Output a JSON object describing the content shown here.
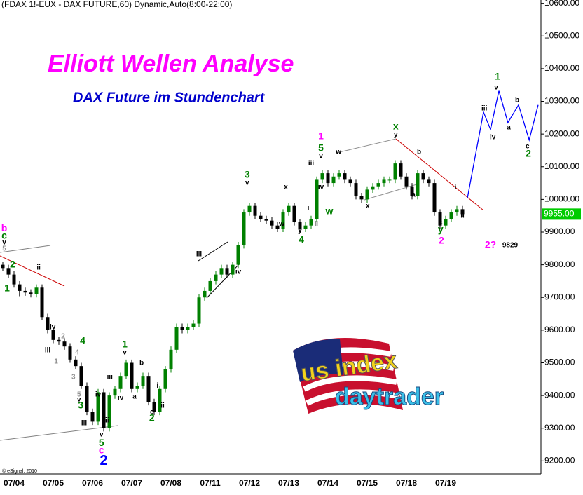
{
  "chart_data": {
    "type": "candlestick",
    "header": "(FDAX 1!-EUX - DAX FUTURE,60) Dynamic,Auto(8:00-22:00)",
    "title": "Elliott Wellen Analyse",
    "subtitle": "DAX Future im Stundenchart",
    "copyright": "© eSignal, 2010",
    "logo": [
      "us index",
      "daytrader"
    ],
    "up_color": "#008000",
    "down_color": "#000000",
    "categories": [
      null,
      null,
      "07/04",
      null,
      null,
      null,
      null,
      null,
      null,
      "07/05",
      null,
      null,
      null,
      null,
      null,
      null,
      "07/06",
      null,
      null,
      null,
      null,
      null,
      null,
      "07/07",
      null,
      null,
      null,
      null,
      null,
      null,
      "07/08",
      null,
      null,
      null,
      null,
      null,
      null,
      "07/11",
      null,
      null,
      null,
      null,
      null,
      null,
      "07/12",
      null,
      null,
      null,
      null,
      null,
      null,
      "07/13",
      null,
      null,
      null,
      null,
      null,
      null,
      "07/14",
      null,
      null,
      null,
      null,
      null,
      null,
      "07/15",
      null,
      null,
      null,
      null,
      null,
      null,
      "07/18",
      null,
      null,
      null,
      null,
      null,
      null,
      "07/19",
      null,
      null,
      null
    ],
    "open": [
      9800,
      9790,
      9770,
      9740,
      9720,
      9715,
      9710,
      9730,
      9640,
      9600,
      9570,
      9565,
      9550,
      9510,
      9490,
      9430,
      9350,
      9320,
      9410,
      9300,
      9400,
      9420,
      9460,
      9500,
      9420,
      9430,
      9460,
      9380,
      9350,
      9420,
      9480,
      9540,
      9610,
      9600,
      9610,
      9620,
      9700,
      9720,
      9750,
      9770,
      9790,
      9770,
      9800,
      9860,
      9960,
      9980,
      9950,
      9940,
      9935,
      9920,
      9910,
      9960,
      9980,
      9930,
      9910,
      9920,
      9940,
      10060,
      10080,
      10050,
      10070,
      10080,
      10060,
      10050,
      10010,
      10000,
      10030,
      10040,
      10050,
      10060,
      10060,
      10110,
      10070,
      10040,
      10010,
      10080,
      10060,
      10050,
      9960,
      9920,
      9940,
      9960,
      9970
    ],
    "high": [
      9810,
      9800,
      9780,
      9750,
      9730,
      9725,
      9740,
      9740,
      9650,
      9610,
      9580,
      9575,
      9560,
      9520,
      9500,
      9440,
      9360,
      9420,
      9420,
      9410,
      9430,
      9470,
      9510,
      9510,
      9440,
      9470,
      9470,
      9390,
      9430,
      9490,
      9550,
      9620,
      9620,
      9620,
      9630,
      9710,
      9730,
      9760,
      9780,
      9800,
      9800,
      9810,
      9870,
      9970,
      9990,
      9990,
      9960,
      9950,
      9945,
      9930,
      9970,
      9990,
      9990,
      9940,
      9930,
      9950,
      10070,
      10090,
      10090,
      10080,
      10090,
      10090,
      10070,
      10060,
      10020,
      10040,
      10050,
      10060,
      10070,
      10070,
      10120,
      10120,
      10080,
      10050,
      10090,
      10090,
      10070,
      10060,
      9970,
      9950,
      9970,
      9980,
      9980
    ],
    "low": [
      9780,
      9760,
      9730,
      9710,
      9705,
      9700,
      9700,
      9630,
      9590,
      9560,
      9555,
      9540,
      9500,
      9480,
      9420,
      9340,
      9310,
      9310,
      9290,
      9290,
      9390,
      9410,
      9450,
      9410,
      9410,
      9420,
      9370,
      9340,
      9340,
      9410,
      9470,
      9530,
      9590,
      9590,
      9600,
      9610,
      9690,
      9710,
      9740,
      9760,
      9760,
      9760,
      9790,
      9850,
      9950,
      9940,
      9930,
      9925,
      9910,
      9900,
      9900,
      9950,
      9920,
      9900,
      9900,
      9910,
      9930,
      10050,
      10040,
      10040,
      10060,
      10050,
      10040,
      10000,
      9990,
      9990,
      10020,
      10030,
      10040,
      10050,
      10050,
      10060,
      10030,
      10000,
      10000,
      10050,
      10040,
      9950,
      9910,
      9910,
      9930,
      9950,
      9945
    ],
    "close": [
      9790,
      9770,
      9740,
      9720,
      9715,
      9710,
      9730,
      9640,
      9600,
      9570,
      9565,
      9550,
      9510,
      9490,
      9430,
      9350,
      9320,
      9410,
      9300,
      9400,
      9420,
      9460,
      9500,
      9420,
      9430,
      9460,
      9380,
      9350,
      9420,
      9480,
      9540,
      9610,
      9600,
      9610,
      9620,
      9700,
      9720,
      9750,
      9770,
      9790,
      9770,
      9800,
      9860,
      9960,
      9980,
      9950,
      9940,
      9935,
      9920,
      9910,
      9960,
      9980,
      9930,
      9910,
      9920,
      9940,
      10060,
      10080,
      10050,
      10070,
      10080,
      10060,
      10050,
      10010,
      10000,
      10030,
      10040,
      10050,
      10060,
      10060,
      10110,
      10070,
      10040,
      10010,
      10080,
      10060,
      10050,
      9960,
      9920,
      9940,
      9960,
      9970,
      9955
    ],
    "projection": {
      "color": "#0000ff",
      "x": [
        82.9,
        85.75,
        87,
        88.5,
        90.1,
        92,
        93.9,
        95.5
      ],
      "values": [
        10006,
        10267,
        10214,
        10332,
        10235,
        10289,
        10182,
        10289
      ]
    },
    "last_price": {
      "value": 9955,
      "label": "9955.00"
    },
    "xlim": [
      -0.5,
      96
    ],
    "ylim": [
      9160,
      10610
    ],
    "yticks": [
      {
        "value": 9200,
        "label": "9200.00"
      },
      {
        "value": 9300,
        "label": "9300.00"
      },
      {
        "value": 9400,
        "label": "9400.00"
      },
      {
        "value": 9500,
        "label": "9500.00"
      },
      {
        "value": 9600,
        "label": "9600.00"
      },
      {
        "value": 9700,
        "label": "9700.00"
      },
      {
        "value": 9800,
        "label": "9800.00"
      },
      {
        "value": 9900,
        "label": "9900.00"
      },
      {
        "value": 10000,
        "label": "10000.00"
      },
      {
        "value": 10100,
        "label": "10100.00"
      },
      {
        "value": 10200,
        "label": "10200.00"
      },
      {
        "value": 10300,
        "label": "10300.00"
      },
      {
        "value": 10400,
        "label": "10400.00"
      },
      {
        "value": 10500,
        "label": "10500.00"
      },
      {
        "value": 10600,
        "label": "10600.00"
      }
    ],
    "annotations": [
      {
        "text": "b",
        "color": "#ff00ff",
        "x": 0.25,
        "y": 9910
      },
      {
        "text": "c",
        "color": "#008000",
        "x": 0.25,
        "y": 9888
      },
      {
        "text": "v",
        "color": "#000000",
        "x": 0.25,
        "y": 9868
      },
      {
        "text": "5",
        "color": "#909090",
        "x": 0.25,
        "y": 9849
      },
      {
        "text": "2",
        "color": "#008000",
        "x": 1.75,
        "y": 9800
      },
      {
        "text": "1",
        "color": "#008000",
        "x": 0.75,
        "y": 9727
      },
      {
        "text": "i",
        "color": "#000000",
        "x": 3,
        "y": 9709
      },
      {
        "text": "ii",
        "color": "#000000",
        "x": 6.4,
        "y": 9791
      },
      {
        "text": "iv",
        "color": "#000000",
        "x": 8.9,
        "y": 9609
      },
      {
        "text": "2",
        "color": "#909090",
        "x": 10.75,
        "y": 9581
      },
      {
        "text": "iii",
        "color": "#000000",
        "x": 8,
        "y": 9538
      },
      {
        "text": "1",
        "color": "#909090",
        "x": 9.5,
        "y": 9503
      },
      {
        "text": "4",
        "color": "#909090",
        "x": 13.25,
        "y": 9531
      },
      {
        "text": "4",
        "color": "#008000",
        "x": 14.25,
        "y": 9566
      },
      {
        "text": "3",
        "color": "#909090",
        "x": 12.6,
        "y": 9456
      },
      {
        "text": "5",
        "color": "#909090",
        "x": 13.6,
        "y": 9403
      },
      {
        "text": "v",
        "color": "#000000",
        "x": 13.6,
        "y": 9388
      },
      {
        "text": "3",
        "color": "#008000",
        "x": 13.9,
        "y": 9368
      },
      {
        "text": "iii",
        "color": "#000000",
        "x": 14.5,
        "y": 9315
      },
      {
        "text": "iv",
        "color": "#000000",
        "x": 17,
        "y": 9403
      },
      {
        "text": "ii",
        "color": "#000000",
        "x": 18.6,
        "y": 9323
      },
      {
        "text": "v",
        "color": "#000000",
        "x": 17.6,
        "y": 9280
      },
      {
        "text": "5",
        "color": "#008000",
        "x": 17.6,
        "y": 9254
      },
      {
        "text": "c",
        "color": "#ff00ff",
        "x": 17.6,
        "y": 9231
      },
      {
        "text": "2",
        "color": "#0000ff",
        "x": 18,
        "y": 9199
      },
      {
        "text": "iii",
        "color": "#000000",
        "x": 19.1,
        "y": 9456
      },
      {
        "text": "iv",
        "color": "#000000",
        "x": 21,
        "y": 9392
      },
      {
        "text": "1",
        "color": "#008000",
        "x": 21.75,
        "y": 9555
      },
      {
        "text": "v",
        "color": "#000000",
        "x": 21.75,
        "y": 9531
      },
      {
        "text": "b",
        "color": "#000000",
        "x": 24.75,
        "y": 9499
      },
      {
        "text": "a",
        "color": "#000000",
        "x": 23.5,
        "y": 9396
      },
      {
        "text": "i",
        "color": "#000000",
        "x": 27.6,
        "y": 9430
      },
      {
        "text": "ii",
        "color": "#000000",
        "x": 28.5,
        "y": 9368
      },
      {
        "text": "c",
        "color": "#000000",
        "x": 26.6,
        "y": 9349
      },
      {
        "text": "2",
        "color": "#008000",
        "x": 26.6,
        "y": 9330
      },
      {
        "text": "iii",
        "color": "#000000",
        "x": 35,
        "y": 9832
      },
      {
        "text": "iv",
        "color": "#000000",
        "x": 42,
        "y": 9778
      },
      {
        "text": "3",
        "color": "#008000",
        "x": 43.6,
        "y": 10074
      },
      {
        "text": "v",
        "color": "#000000",
        "x": 43.6,
        "y": 10051
      },
      {
        "text": "x",
        "color": "#000000",
        "x": 50.5,
        "y": 10038
      },
      {
        "text": "w",
        "color": "#000000",
        "x": 49.75,
        "y": 9924
      },
      {
        "text": "i",
        "color": "#000000",
        "x": 54.5,
        "y": 9973
      },
      {
        "text": "ii",
        "color": "#000000",
        "x": 55.9,
        "y": 9924
      },
      {
        "text": "y",
        "color": "#000000",
        "x": 53,
        "y": 9903
      },
      {
        "text": "4",
        "color": "#008000",
        "x": 53.25,
        "y": 9875
      },
      {
        "text": "1",
        "color": "#ff00ff",
        "x": 56.75,
        "y": 10192
      },
      {
        "text": "5",
        "color": "#008000",
        "x": 56.75,
        "y": 10156
      },
      {
        "text": "v",
        "color": "#000000",
        "x": 56.75,
        "y": 10132
      },
      {
        "text": "iii",
        "color": "#000000",
        "x": 55,
        "y": 10109
      },
      {
        "text": "iv",
        "color": "#000000",
        "x": 56.75,
        "y": 10038
      },
      {
        "text": "w",
        "color": "#000000",
        "x": 59.9,
        "y": 10145
      },
      {
        "text": "w",
        "color": "#008000",
        "x": 58.25,
        "y": 9963
      },
      {
        "text": "x",
        "color": "#000000",
        "x": 65.1,
        "y": 9980
      },
      {
        "text": "x",
        "color": "#008000",
        "x": 70.1,
        "y": 10222
      },
      {
        "text": "y",
        "color": "#000000",
        "x": 70.1,
        "y": 10197
      },
      {
        "text": "b",
        "color": "#000000",
        "x": 74.25,
        "y": 10145
      },
      {
        "text": "a",
        "color": "#000000",
        "x": 73.25,
        "y": 10014
      },
      {
        "text": "c",
        "color": "#000000",
        "x": 78.1,
        "y": 9928
      },
      {
        "text": "y",
        "color": "#008000",
        "x": 78.1,
        "y": 9907
      },
      {
        "text": "2",
        "color": "#ff00ff",
        "x": 78.25,
        "y": 9873
      },
      {
        "text": "i",
        "color": "#000000",
        "x": 80.75,
        "y": 10036
      },
      {
        "text": "ii",
        "color": "#000000",
        "x": 82,
        "y": 9950
      },
      {
        "text": "1",
        "color": "#008000",
        "x": 88.25,
        "y": 10375
      },
      {
        "text": "v",
        "color": "#000000",
        "x": 88,
        "y": 10342
      },
      {
        "text": "iii",
        "color": "#000000",
        "x": 85.9,
        "y": 10278
      },
      {
        "text": "iv",
        "color": "#000000",
        "x": 87.4,
        "y": 10190
      },
      {
        "text": "a",
        "color": "#000000",
        "x": 90.25,
        "y": 10220
      },
      {
        "text": "b",
        "color": "#000000",
        "x": 91.75,
        "y": 10304
      },
      {
        "text": "c",
        "color": "#000000",
        "x": 93.6,
        "y": 10162
      },
      {
        "text": "2",
        "color": "#008000",
        "x": 93.75,
        "y": 10139
      },
      {
        "text": "2?",
        "color": "#ff00ff",
        "x": 87,
        "y": 9860
      },
      {
        "text": "9829",
        "color": "#000000",
        "x": 90.5,
        "y": 9860
      }
    ]
  }
}
